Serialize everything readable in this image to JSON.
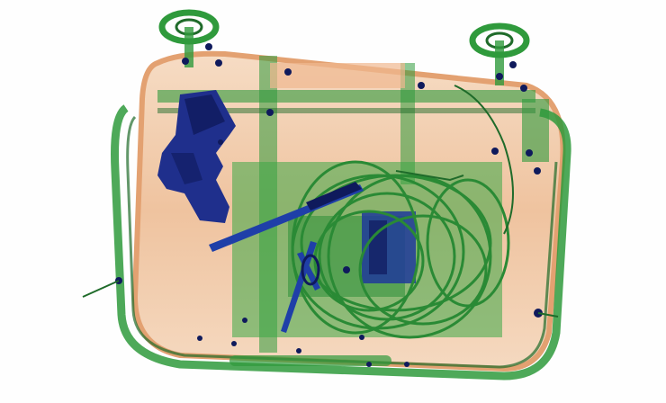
{
  "image": {
    "kind": "x-ray baggage scan",
    "colors": {
      "background": "#fefefe",
      "organic": "#e8a878",
      "organic_light": "#f3cdae",
      "inorganic": "#2f9a3c",
      "inorganic_dark": "#1f6b2a",
      "metal": "#1f2f8c",
      "metal_dark": "#0f1a5c",
      "wire": "#2a8a35"
    },
    "objects": [
      "suitcase",
      "handgun",
      "scissors",
      "knife",
      "coiled-cable",
      "electronics-board",
      "wheel-left",
      "wheel-right"
    ]
  }
}
